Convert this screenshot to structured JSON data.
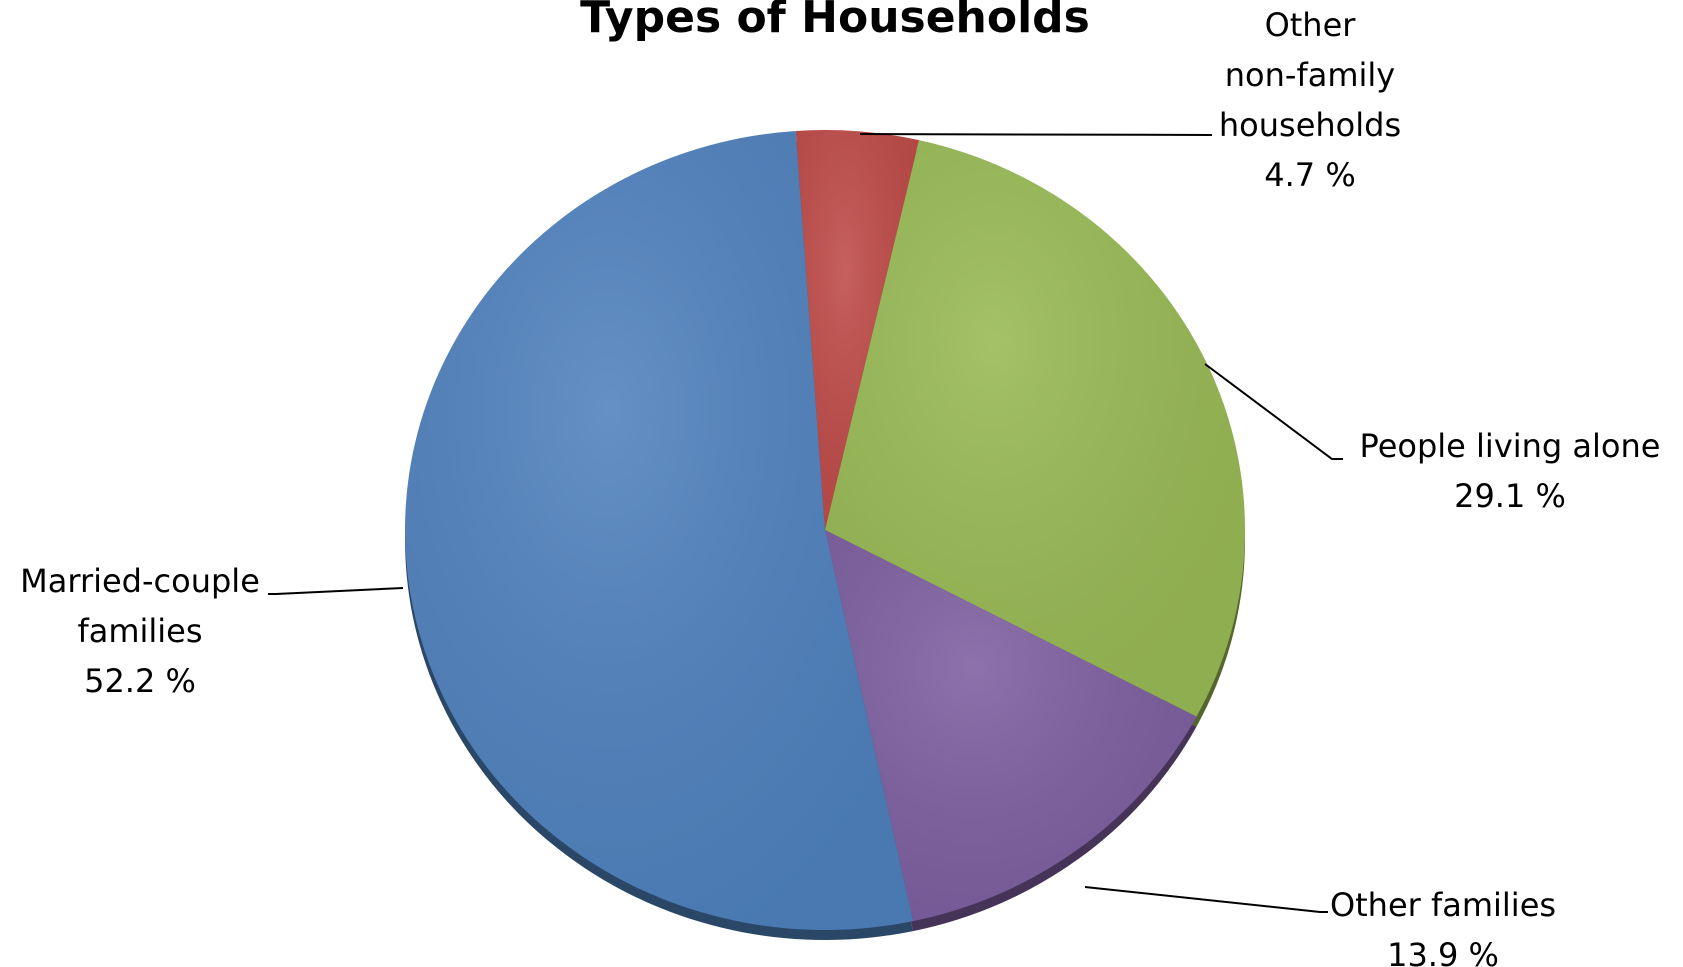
{
  "chart_data": {
    "type": "pie",
    "title": "Types of Households",
    "slices": [
      {
        "label": [
          "Other",
          "non-family",
          "households"
        ],
        "value": 4.7,
        "display": "4.7 %",
        "color": "#BE4B48"
      },
      {
        "label": [
          "People living alone"
        ],
        "value": 29.1,
        "display": "29.1 %",
        "color": "#98B954"
      },
      {
        "label": [
          "Other families"
        ],
        "value": 13.9,
        "display": "13.9 %",
        "color": "#7D5FA0"
      },
      {
        "label": [
          "Married-couple",
          "families"
        ],
        "value": 52.2,
        "display": "52.2 %",
        "color": "#4F81BD"
      }
    ],
    "legend": "none",
    "start_angle_deg": -4,
    "direction": "clockwise"
  }
}
